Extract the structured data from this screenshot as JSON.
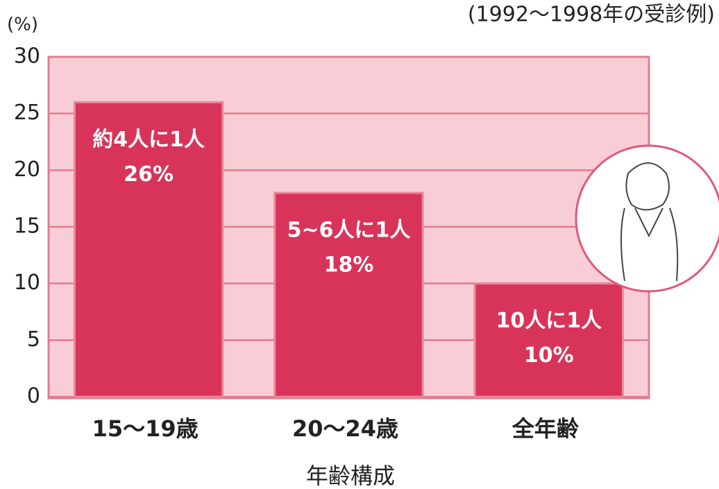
{
  "chart_data": {
    "type": "bar",
    "title": "(1992～1998年の受診例)",
    "y_axis_label": "(%)",
    "x_axis_label": "年齢構成",
    "categories": [
      "15～19歳",
      "20～24歳",
      "全年齢"
    ],
    "values": [
      26,
      18,
      10
    ],
    "value_labels": [
      "26%",
      "18%",
      "10%"
    ],
    "annotations": [
      "約4人に1人",
      "5~6人に1人",
      "10人に1人"
    ],
    "color": "#d8345a",
    "ylim": [
      0,
      30
    ],
    "yticks": [
      0,
      5,
      10,
      15,
      20,
      25,
      30
    ],
    "grid": true
  }
}
